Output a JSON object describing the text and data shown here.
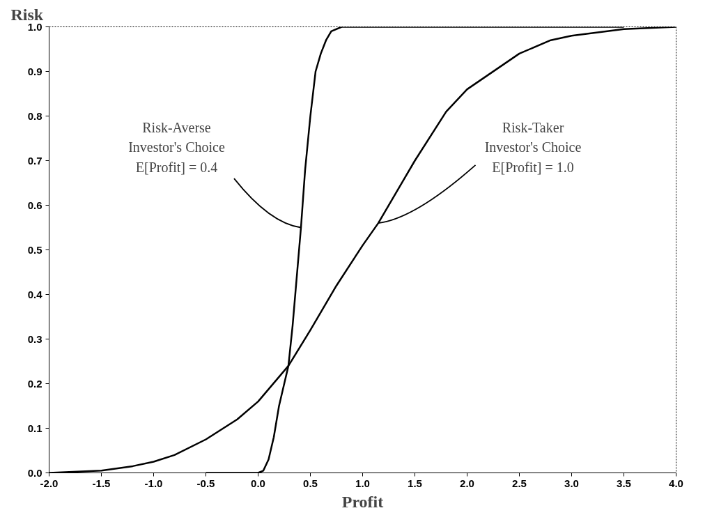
{
  "chart_data": {
    "type": "line",
    "xlabel": "Profit",
    "ylabel": "Risk",
    "xlim": [
      -2.0,
      4.0
    ],
    "ylim": [
      0.0,
      1.0
    ],
    "xticks": [
      {
        "value": -2.0,
        "label": "-2.0"
      },
      {
        "value": -1.5,
        "label": "-1.5"
      },
      {
        "value": -1.0,
        "label": "-1.0"
      },
      {
        "value": -0.5,
        "label": "-0.5"
      },
      {
        "value": 0.0,
        "label": "0.0"
      },
      {
        "value": 0.5,
        "label": "0.5"
      },
      {
        "value": 1.0,
        "label": "1.0"
      },
      {
        "value": 1.5,
        "label": "1.5"
      },
      {
        "value": 2.0,
        "label": "2.0"
      },
      {
        "value": 2.5,
        "label": "2.5"
      },
      {
        "value": 3.0,
        "label": "3.0"
      },
      {
        "value": 3.5,
        "label": "3.5"
      },
      {
        "value": 4.0,
        "label": "4.0"
      }
    ],
    "yticks": [
      {
        "value": 0.0,
        "label": "0.0"
      },
      0.1,
      0.2,
      0.3,
      0.4,
      0.5,
      0.6,
      0.7,
      0.8,
      0.9,
      {
        "value": 1.0,
        "label": "1.0"
      }
    ],
    "grid": false,
    "marker": "none",
    "line_style": "solid",
    "series": [
      {
        "color": "#000000",
        "x": [
          -0.5,
          0.0,
          0.05,
          0.1,
          0.15,
          0.2,
          0.25,
          0.29,
          0.33,
          0.37,
          0.41,
          0.45,
          0.5,
          0.55,
          0.6,
          0.65,
          0.7,
          0.8,
          3.5
        ],
        "values": [
          0.0,
          0.0,
          0.005,
          0.03,
          0.08,
          0.15,
          0.2,
          0.24,
          0.33,
          0.44,
          0.55,
          0.68,
          0.8,
          0.9,
          0.94,
          0.97,
          0.99,
          1.0,
          1.0
        ]
      },
      {
        "color": "#000000",
        "x": [
          -2.0,
          -1.5,
          -1.2,
          -1.0,
          -0.8,
          -0.5,
          -0.2,
          0.0,
          0.29,
          0.5,
          0.75,
          1.0,
          1.15,
          1.5,
          1.8,
          2.0,
          2.5,
          2.8,
          3.0,
          3.5,
          4.0
        ],
        "values": [
          0.0,
          0.005,
          0.015,
          0.025,
          0.04,
          0.075,
          0.12,
          0.16,
          0.24,
          0.32,
          0.42,
          0.51,
          0.56,
          0.7,
          0.81,
          0.86,
          0.94,
          0.97,
          0.98,
          0.995,
          1.0
        ]
      }
    ],
    "annotations": [
      {
        "text": "Risk-Averse\nInvestor's Choice\nE[Profit] = 0.4",
        "x": 0.41,
        "y": 0.55
      },
      {
        "text": "Risk-Taker\nInvestor's Choice\nE[Profit] = 1.0",
        "x": 1.15,
        "y": 0.56
      }
    ]
  }
}
